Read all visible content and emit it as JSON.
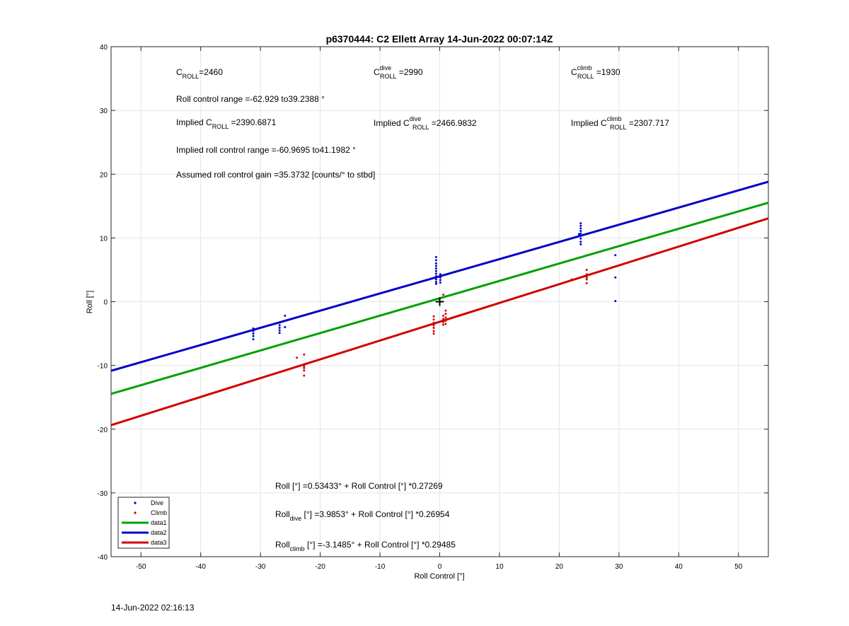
{
  "chart_data": {
    "type": "scatter",
    "title": "p6370444: C2 Ellett Array 14-Jun-2022 00:07:14Z",
    "xlabel": "Roll Control [°]",
    "ylabel": "Roll [°]",
    "xlim": [
      -55,
      55
    ],
    "ylim": [
      -40,
      40
    ],
    "xticks": [
      -50,
      -40,
      -30,
      -20,
      -10,
      0,
      10,
      20,
      30,
      40,
      50
    ],
    "yticks": [
      -40,
      -30,
      -20,
      -10,
      0,
      10,
      20,
      30,
      40
    ],
    "grid": true,
    "legend_position": "bottom-left",
    "series": [
      {
        "name": "Dive",
        "kind": "points",
        "color": "#0000c8",
        "points": [
          [
            -31.2,
            -4.2
          ],
          [
            -31.2,
            -4.6
          ],
          [
            -31.2,
            -5.0
          ],
          [
            -31.2,
            -5.4
          ],
          [
            -31.2,
            -5.9
          ],
          [
            -31.0,
            -4.4
          ],
          [
            -26.8,
            -3.3
          ],
          [
            -26.8,
            -3.7
          ],
          [
            -26.8,
            -4.1
          ],
          [
            -26.8,
            -4.5
          ],
          [
            -26.8,
            -4.9
          ],
          [
            -25.9,
            -2.2
          ],
          [
            -25.9,
            -4.0
          ],
          [
            -0.6,
            7.0
          ],
          [
            -0.6,
            6.5
          ],
          [
            -0.6,
            6.0
          ],
          [
            -0.6,
            5.6
          ],
          [
            -0.6,
            5.2
          ],
          [
            -0.6,
            4.8
          ],
          [
            -0.6,
            4.4
          ],
          [
            -0.6,
            4.0
          ],
          [
            -0.6,
            3.5
          ],
          [
            -0.6,
            3.1
          ],
          [
            -0.6,
            2.8
          ],
          [
            0.1,
            4.3
          ],
          [
            0.1,
            3.8
          ],
          [
            0.1,
            3.4
          ],
          [
            0.1,
            3.0
          ],
          [
            23.6,
            12.3
          ],
          [
            23.6,
            11.9
          ],
          [
            23.6,
            11.5
          ],
          [
            23.6,
            11.1
          ],
          [
            23.6,
            10.7
          ],
          [
            23.6,
            10.3
          ],
          [
            23.6,
            9.9
          ],
          [
            23.6,
            9.4
          ],
          [
            23.6,
            9.0
          ],
          [
            23.3,
            10.6
          ],
          [
            29.4,
            7.3
          ],
          [
            29.4,
            3.8
          ],
          [
            29.4,
            0.1
          ]
        ]
      },
      {
        "name": "Climb",
        "kind": "points",
        "color": "#d00000",
        "points": [
          [
            -23.9,
            -8.8
          ],
          [
            -22.7,
            -8.3
          ],
          [
            -22.7,
            -10.1
          ],
          [
            -22.7,
            -10.4
          ],
          [
            -22.7,
            -10.8
          ],
          [
            -22.7,
            -11.6
          ],
          [
            -1.0,
            -2.3
          ],
          [
            -1.0,
            -2.8
          ],
          [
            -1.0,
            -3.3
          ],
          [
            -1.0,
            -3.7
          ],
          [
            -1.0,
            -4.1
          ],
          [
            -1.0,
            -4.6
          ],
          [
            -1.0,
            -5.0
          ],
          [
            0.6,
            -2.2
          ],
          [
            0.6,
            -2.7
          ],
          [
            0.6,
            -3.2
          ],
          [
            0.6,
            -3.6
          ],
          [
            1.0,
            -1.4
          ],
          [
            1.0,
            -1.9
          ],
          [
            1.0,
            -2.5
          ],
          [
            1.0,
            -3.0
          ],
          [
            1.0,
            -3.5
          ],
          [
            0.6,
            1.1
          ],
          [
            22.1,
            3.5
          ],
          [
            24.6,
            5.0
          ],
          [
            24.6,
            4.3
          ],
          [
            24.6,
            3.8
          ],
          [
            24.6,
            3.5
          ],
          [
            24.6,
            2.9
          ]
        ]
      },
      {
        "name": "data1",
        "kind": "line",
        "color": "#00a000",
        "intercept": 0.53433,
        "slope": 0.27269
      },
      {
        "name": "data2",
        "kind": "line",
        "color": "#0000c8",
        "intercept": 3.9853,
        "slope": 0.26954
      },
      {
        "name": "data3",
        "kind": "line",
        "color": "#d00000",
        "intercept": -3.1485,
        "slope": 0.29485
      }
    ],
    "marker_point": [
      0,
      0
    ],
    "annotations": {
      "c_roll": {
        "main": "C",
        "sub": "ROLL",
        "value": "=2460"
      },
      "c_roll_dive": {
        "main": "C",
        "sup": "dive",
        "sub": "ROLL",
        "value": " =2990"
      },
      "c_roll_climb": {
        "main": "C",
        "sup": "climb",
        "sub": "ROLL",
        "value": " =1930"
      },
      "roll_control_range": "Roll control range =-62.929 to39.2388 °",
      "implied_c_roll": {
        "prefix": "Implied C",
        "sub": "ROLL",
        "value": " =2390.6871"
      },
      "implied_c_roll_dive": {
        "prefix": "Implied C",
        "sup": "dive",
        "sub": "ROLL",
        "value": " =2466.9832"
      },
      "implied_c_roll_climb": {
        "prefix": "Implied C",
        "sup": "climb",
        "sub": "ROLL",
        "value": " =2307.717"
      },
      "implied_roll_range": "Implied roll control range =-60.9695 to41.1982 °",
      "assumed_gain": "Assumed roll control gain =35.3732 [counts/° to stbd]",
      "fit_all": {
        "prefix": "Roll",
        "sub": "",
        "text": " [°] =0.53433° + Roll Control [°] *0.27269"
      },
      "fit_dive": {
        "prefix": "Roll",
        "sub": "dive",
        "text": " [°] =3.9853° + Roll Control [°] *0.26954"
      },
      "fit_climb": {
        "prefix": "Roll",
        "sub": "climb",
        "text": " [°] =-3.1485° + Roll Control [°] *0.29485"
      }
    }
  },
  "timestamp": "14-Jun-2022 02:16:13"
}
